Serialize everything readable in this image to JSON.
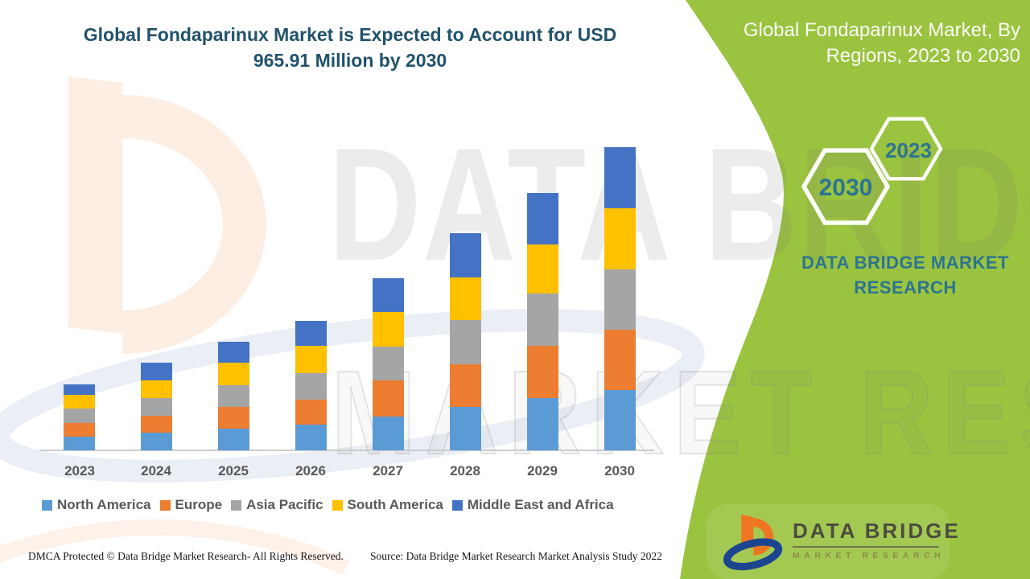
{
  "theme": {
    "green": "#9AC340",
    "title": "#22526B",
    "teal": "#2D7491",
    "graytext": "#595959",
    "axis": "#CCCCCC",
    "orange-brand": "#EE7623",
    "blue-brand": "#1B458F"
  },
  "header": {
    "title_line1": "Global Fondaparinux Market is Expected to Account for USD",
    "title_line2": "965.91 Million by 2030"
  },
  "side_panel": {
    "heading_line1": "Global Fondaparinux Market, By",
    "heading_line2": "Regions, 2023 to 2030",
    "hexagon_back_label": "2030",
    "hexagon_front_label": "2023",
    "caption": "DATA BRIDGE MARKET RESEARCH"
  },
  "watermark": {
    "line1": "DATA BRIDGE",
    "line2": "MARKET RESEARCH"
  },
  "chart_data": {
    "type": "bar",
    "stacked": true,
    "unit": "USD Million",
    "title": "Global Fondaparinux Market, By Regions, 2023 to 2030",
    "categories": [
      "2023",
      "2024",
      "2025",
      "2026",
      "2027",
      "2028",
      "2029",
      "2030"
    ],
    "series": [
      {
        "name": "North America",
        "color": "#5B9BD5",
        "values": [
          44,
          56,
          70,
          82,
          109,
          139,
          166,
          193.5
        ]
      },
      {
        "name": "Europe",
        "color": "#ED7D31",
        "values": [
          44,
          55,
          68,
          80,
          115,
          136,
          166,
          192
        ]
      },
      {
        "name": "Asia Pacific",
        "color": "#A5A5A5",
        "values": [
          44,
          55,
          69,
          85,
          107,
          141,
          167,
          192
        ]
      },
      {
        "name": "South America",
        "color": "#FFC000",
        "values": [
          44,
          58,
          72,
          85,
          109,
          135,
          158,
          195
        ]
      },
      {
        "name": "Middle East and Africa",
        "color": "#4472C4",
        "values": [
          34,
          54,
          67,
          81,
          108,
          140,
          162,
          193.41
        ]
      }
    ],
    "totals": [
      210,
      278,
      346,
      413,
      548,
      691,
      819,
      965.91
    ],
    "ylim": [
      0,
      1000
    ],
    "gridlines": false,
    "y_axis_labels": false,
    "legend_position": "bottom"
  },
  "footer": {
    "dmca": "DMCA Protected © Data Bridge Market Research- All Rights Reserved.",
    "source": "Source: Data Bridge Market Research Market Analysis Study 2022"
  },
  "logo": {
    "name": "DATA BRIDGE",
    "tagline": "MARKET RESEARCH"
  }
}
